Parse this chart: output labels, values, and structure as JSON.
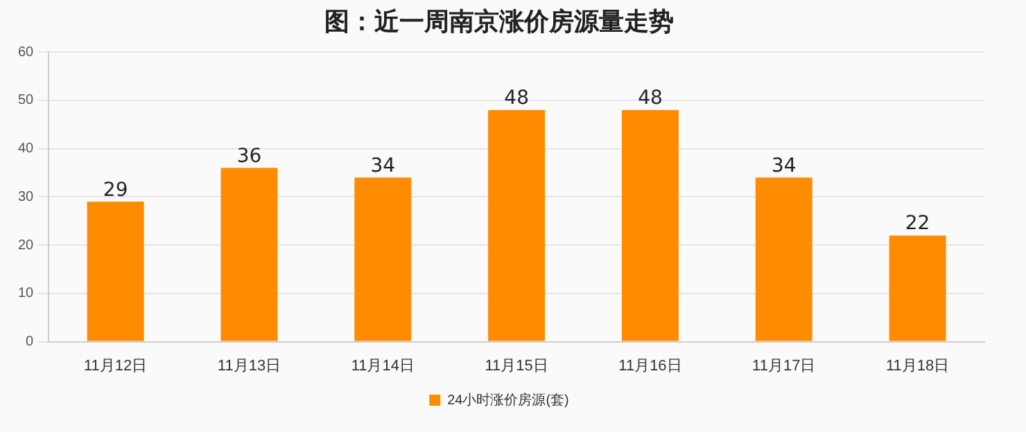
{
  "chart_data": {
    "type": "bar",
    "title": "图：近一周南京涨价房源量走势",
    "categories": [
      "11月12日",
      "11月13日",
      "11月14日",
      "11月15日",
      "11月16日",
      "11月17日",
      "11月18日"
    ],
    "series": [
      {
        "name": "24小时涨价房源(套)",
        "color": "#ff8c00",
        "values": [
          29,
          36,
          34,
          48,
          48,
          34,
          22
        ]
      }
    ],
    "ylim": [
      0,
      60
    ],
    "yticks": [
      0,
      10,
      20,
      30,
      40,
      50,
      60
    ],
    "grid": "y",
    "legend": "bottom",
    "data_labels": true
  }
}
